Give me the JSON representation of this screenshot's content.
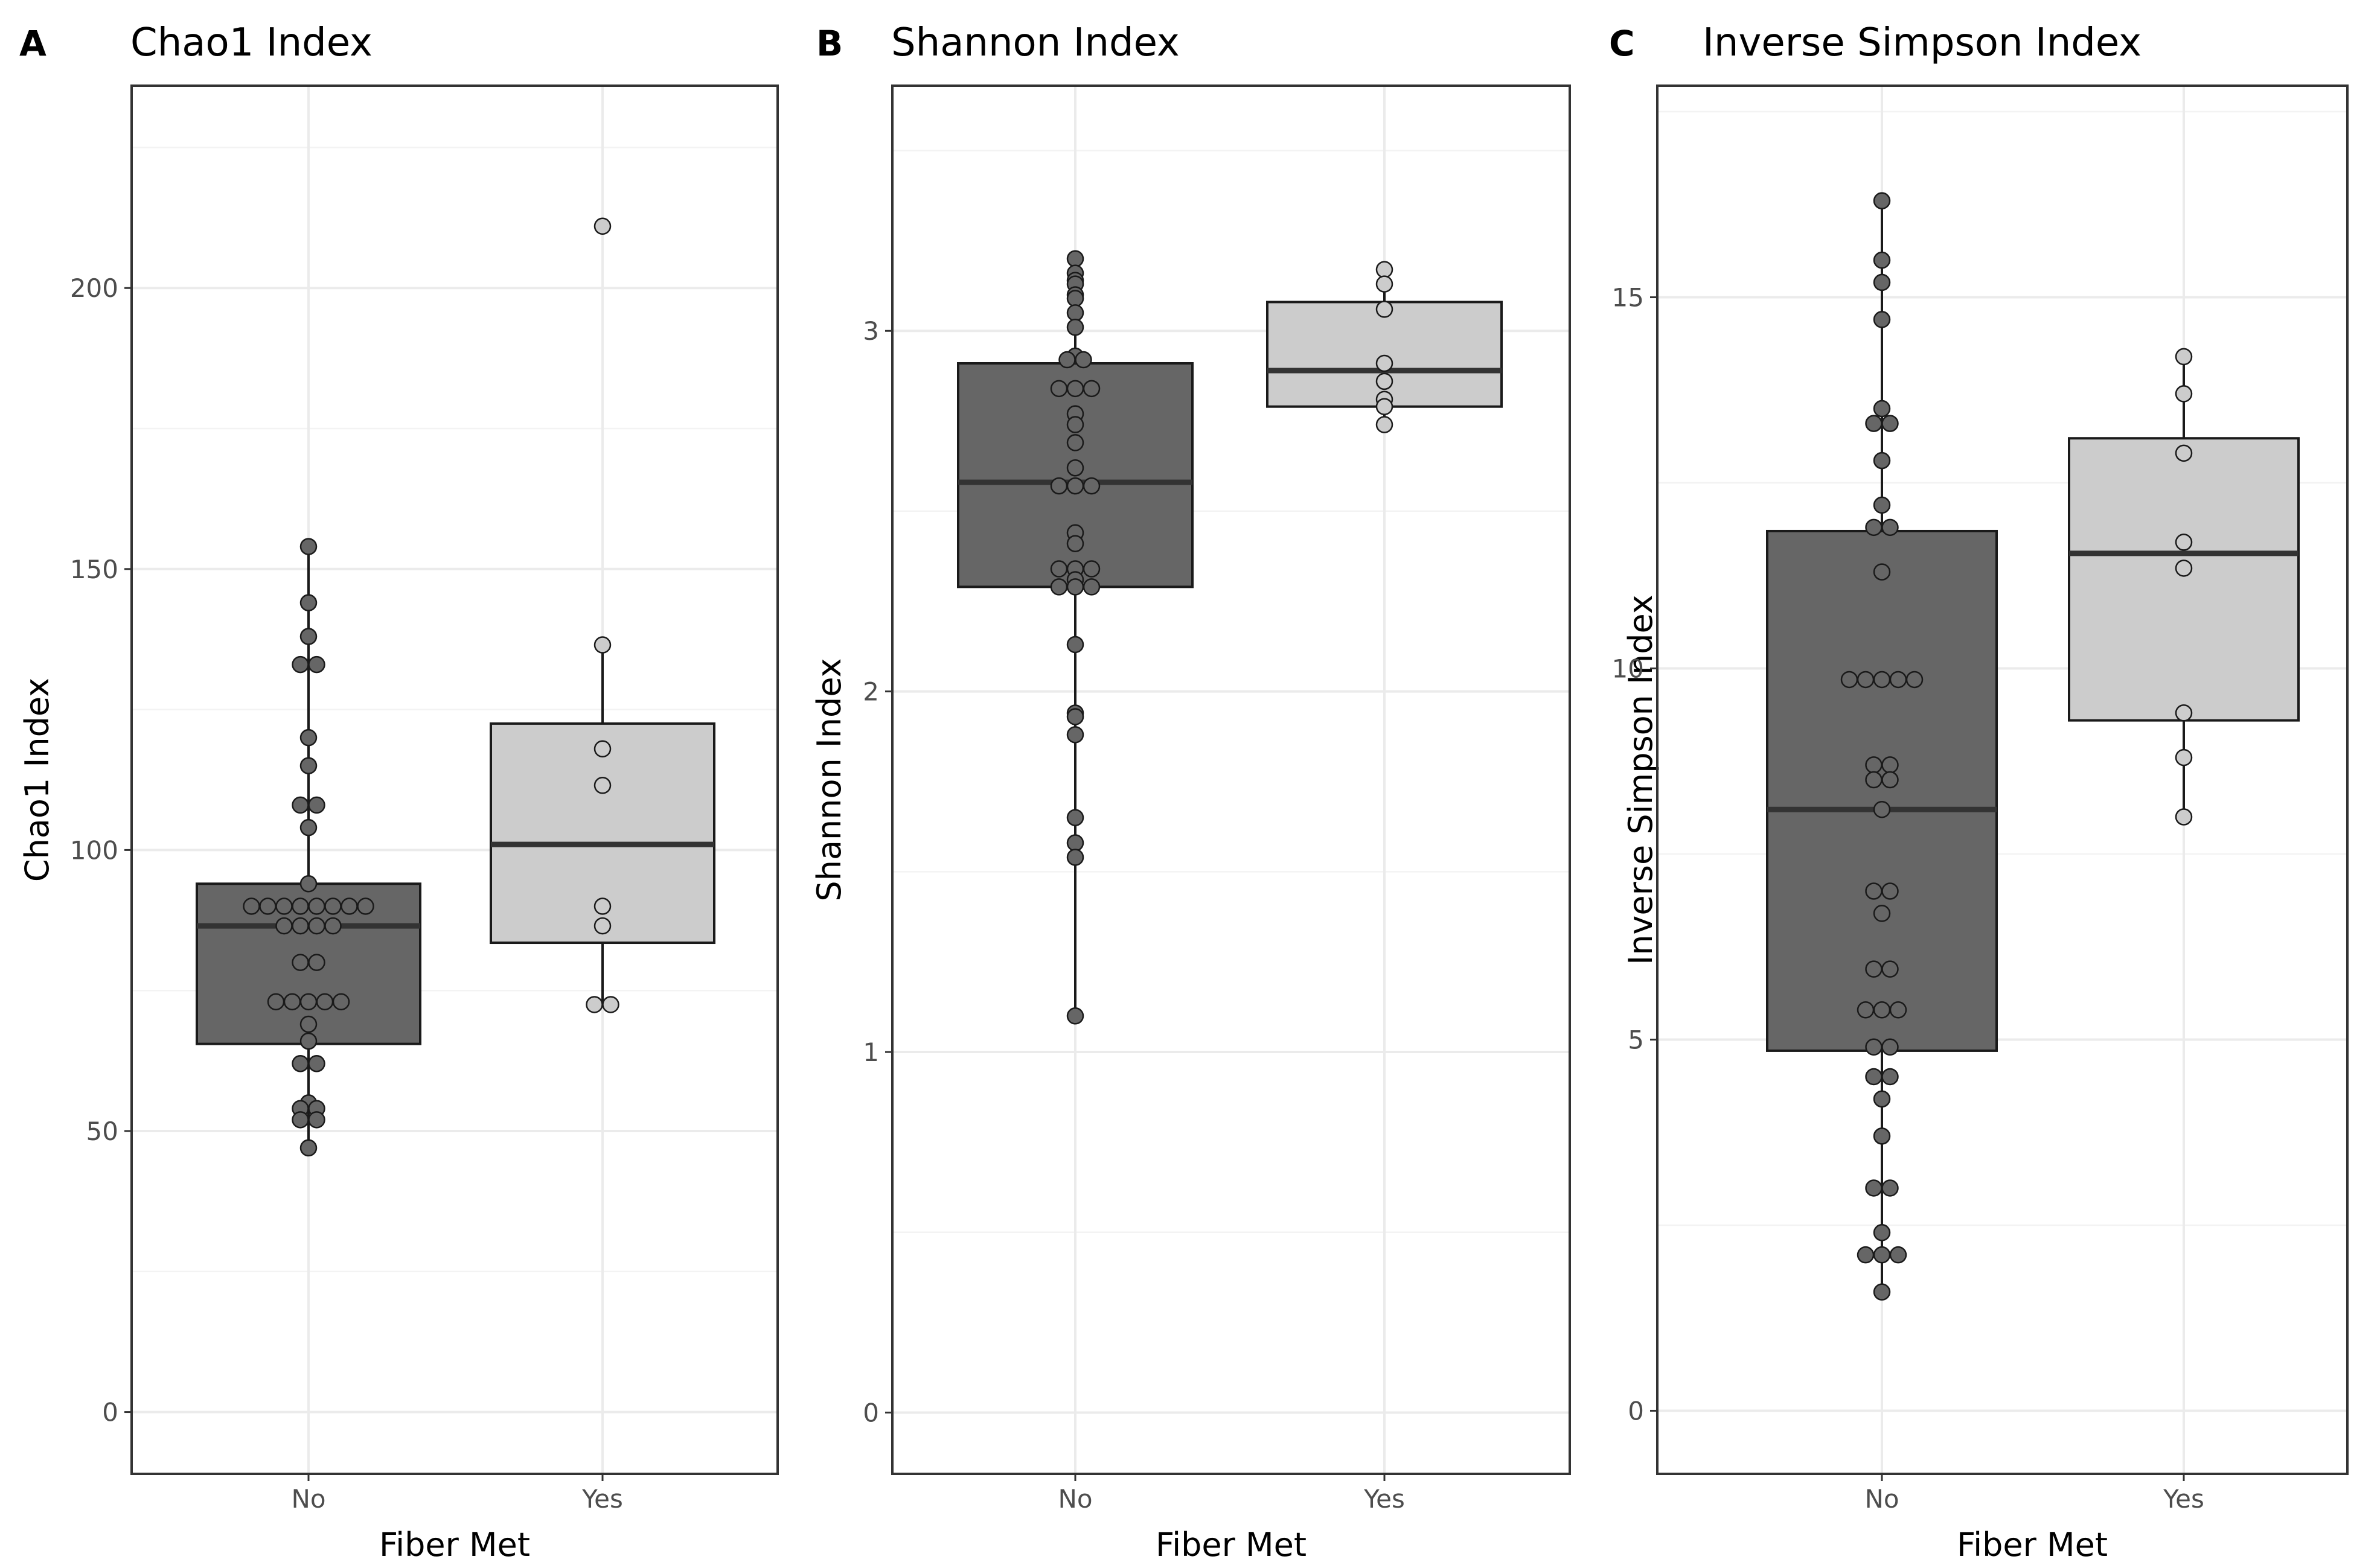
{
  "chart_data": [
    {
      "type": "box",
      "panel": "A",
      "title": "Chao1 Index",
      "xlabel": "Fiber Met",
      "ylabel": "Chao1 Index",
      "categories": [
        "No",
        "Yes"
      ],
      "ylim": [
        -11,
        236
      ],
      "yticks": [
        0,
        50,
        100,
        150,
        200
      ],
      "yticks_minor": [
        25,
        75,
        125,
        175,
        225
      ],
      "groups": [
        {
          "name": "No",
          "fill": "#666666",
          "q1": 65.5,
          "median": 86.5,
          "q3": 94,
          "whisker_low": 47,
          "whisker_high": 154,
          "points": [
            154,
            144,
            138,
            133,
            133,
            120,
            115,
            108,
            108,
            104,
            94,
            90,
            90,
            90,
            90,
            90,
            90,
            90,
            90,
            86.5,
            86.5,
            86.5,
            86.5,
            80,
            80,
            73,
            73,
            73,
            73,
            73,
            69,
            66,
            62,
            62,
            55,
            54,
            54,
            52,
            52,
            47
          ]
        },
        {
          "name": "Yes",
          "fill": "#cccccc",
          "q1": 83.5,
          "median": 101,
          "q3": 122.5,
          "whisker_low": 72,
          "whisker_high": 136.5,
          "points": [
            211,
            136.5,
            118,
            111.5,
            90,
            86.5,
            72.5,
            72.5
          ]
        }
      ]
    },
    {
      "type": "box",
      "panel": "B",
      "title": "Shannon Index",
      "xlabel": "Fiber Met",
      "ylabel": "Shannon Index",
      "categories": [
        "No",
        "Yes"
      ],
      "ylim": [
        -0.17,
        3.68
      ],
      "yticks": [
        0,
        1,
        2,
        3
      ],
      "yticks_minor": [
        0.5,
        1.5,
        2.5,
        3.5
      ],
      "groups": [
        {
          "name": "No",
          "fill": "#666666",
          "q1": 2.29,
          "median": 2.58,
          "q3": 2.91,
          "whisker_low": 1.1,
          "whisker_high": 3.2,
          "points": [
            3.2,
            3.16,
            3.14,
            3.13,
            3.1,
            3.09,
            3.05,
            3.01,
            2.93,
            2.92,
            2.92,
            2.84,
            2.84,
            2.84,
            2.77,
            2.74,
            2.69,
            2.62,
            2.57,
            2.57,
            2.57,
            2.44,
            2.41,
            2.34,
            2.34,
            2.34,
            2.31,
            2.29,
            2.29,
            2.29,
            2.13,
            1.94,
            1.93,
            1.88,
            1.65,
            1.58,
            1.54,
            1.1
          ]
        },
        {
          "name": "Yes",
          "fill": "#cccccc",
          "q1": 2.79,
          "median": 2.89,
          "q3": 3.08,
          "whisker_low": 2.74,
          "whisker_high": 3.17,
          "points": [
            3.17,
            3.13,
            3.06,
            2.91,
            2.86,
            2.81,
            2.79,
            2.74
          ]
        }
      ]
    },
    {
      "type": "box",
      "panel": "C",
      "title": "Inverse Simpson Index",
      "xlabel": "Fiber Met",
      "ylabel": "Inverse Simpson Index",
      "categories": [
        "No",
        "Yes"
      ],
      "ylim": [
        -0.85,
        17.85
      ],
      "yticks": [
        0,
        5,
        10,
        15
      ],
      "yticks_minor": [
        2.5,
        7.5,
        12.5,
        17.5
      ],
      "groups": [
        {
          "name": "No",
          "fill": "#666666",
          "q1": 4.85,
          "median": 8.1,
          "q3": 11.85,
          "whisker_low": 1.6,
          "whisker_high": 16.3,
          "points": [
            16.3,
            15.5,
            15.2,
            14.7,
            13.5,
            13.3,
            13.3,
            12.8,
            12.2,
            11.9,
            11.9,
            11.3,
            9.85,
            9.85,
            9.85,
            9.85,
            9.85,
            8.7,
            8.7,
            8.5,
            8.5,
            8.1,
            7,
            7,
            6.7,
            5.95,
            5.95,
            5.4,
            5.4,
            5.4,
            4.9,
            4.9,
            4.5,
            4.5,
            4.2,
            3.7,
            3,
            3,
            2.4,
            2.1,
            2.1,
            2.1,
            1.6
          ]
        },
        {
          "name": "Yes",
          "fill": "#cccccc",
          "q1": 9.3,
          "median": 11.55,
          "q3": 13.1,
          "whisker_low": 8,
          "whisker_high": 14.2,
          "points": [
            14.2,
            13.7,
            12.9,
            11.7,
            11.35,
            9.4,
            8.8,
            8
          ]
        }
      ]
    }
  ]
}
